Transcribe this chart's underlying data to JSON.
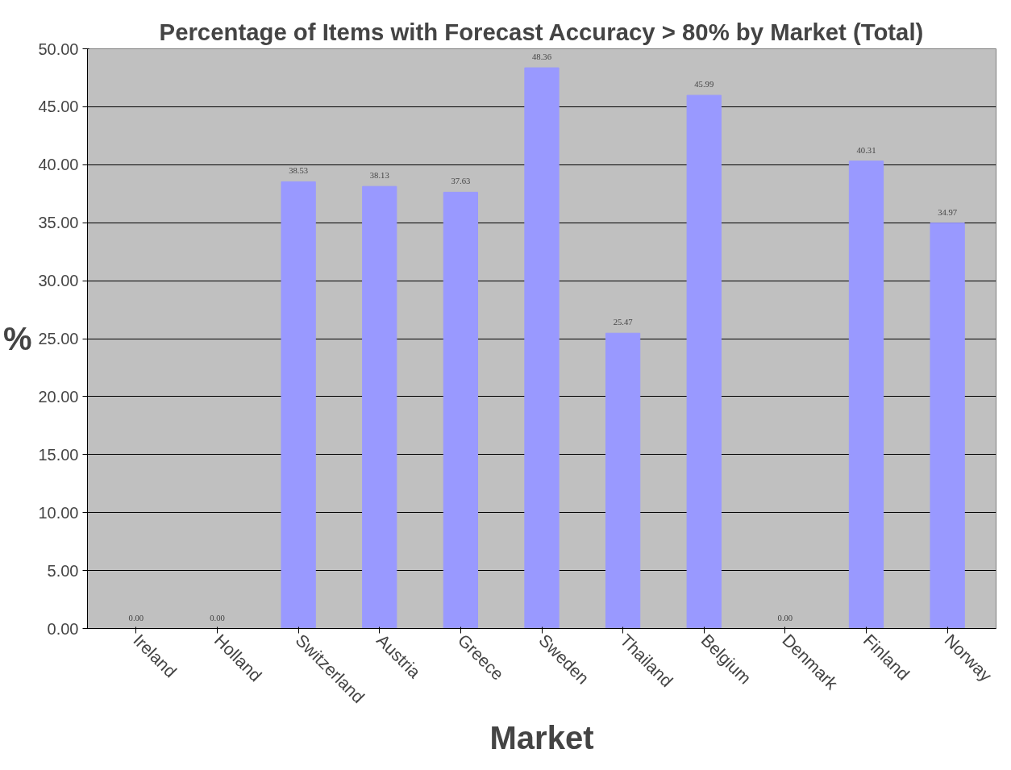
{
  "chart_data": {
    "type": "bar",
    "title": "Percentage of Items with Forecast Accuracy > 80% by Market (Total)",
    "xlabel": "Market",
    "ylabel": "%",
    "categories": [
      "Ireland",
      "Holland",
      "Switzerland",
      "Austria",
      "Greece",
      "Sweden",
      "Thailand",
      "Belgium",
      "Denmark",
      "Finland",
      "Norway"
    ],
    "values": [
      0,
      0,
      38.53,
      38.13,
      37.63,
      48.36,
      25.47,
      45.99,
      0,
      40.31,
      34.97
    ],
    "value_labels": [
      "0.00",
      "0.00",
      "38.53",
      "38.13",
      "37.63",
      "48.36",
      "25.47",
      "45.99",
      "0.00",
      "40.31",
      "34.97"
    ],
    "color": "#9999ff",
    "ylim": [
      0,
      50
    ],
    "yticks": [
      {
        "value": 0,
        "label": "0.00"
      },
      {
        "value": 5,
        "label": "5.00"
      },
      {
        "value": 10,
        "label": "10.00"
      },
      {
        "value": 15,
        "label": "15.00"
      },
      {
        "value": 20,
        "label": "20.00"
      },
      {
        "value": 25,
        "label": "25.00"
      },
      {
        "value": 30,
        "label": "30.00"
      },
      {
        "value": 35,
        "label": "35.00"
      },
      {
        "value": 40,
        "label": "40.00"
      },
      {
        "value": 45,
        "label": "45.00"
      },
      {
        "value": 50,
        "label": "50.00"
      }
    ],
    "grid": "y"
  }
}
